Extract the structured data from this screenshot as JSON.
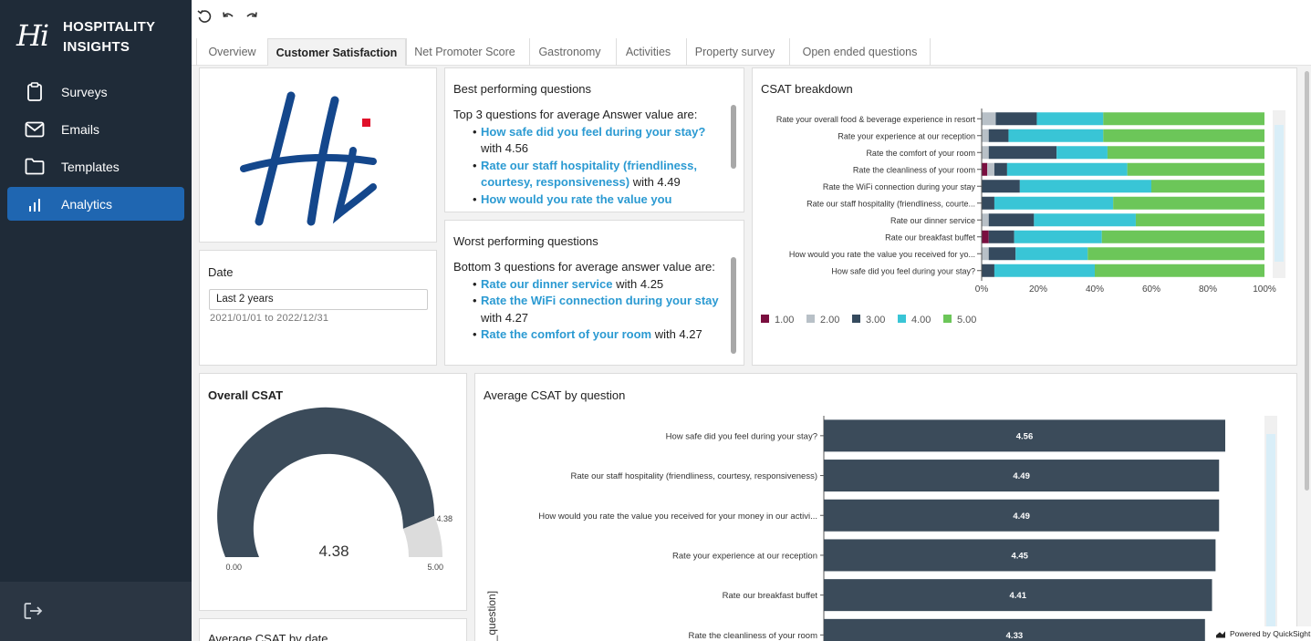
{
  "brand": {
    "mark": "Hi",
    "line1": "HOSPITALITY",
    "line2": "INSIGHTS"
  },
  "sidebar": {
    "items": [
      {
        "label": "Surveys",
        "icon": "clipboard-icon"
      },
      {
        "label": "Emails",
        "icon": "mail-icon"
      },
      {
        "label": "Templates",
        "icon": "folder-icon"
      },
      {
        "label": "Analytics",
        "icon": "bar-chart-icon",
        "active": true
      }
    ]
  },
  "tabs": [
    {
      "label": "Overview"
    },
    {
      "label": "Customer Satisfaction",
      "active": true
    },
    {
      "label": "Net Promoter Score"
    },
    {
      "label": "Gastronomy"
    },
    {
      "label": "Activities"
    },
    {
      "label": "Property survey"
    },
    {
      "label": "Open ended questions"
    }
  ],
  "best": {
    "title": "Best performing questions",
    "intro": "Top 3 questions for average Answer value are:",
    "items": [
      {
        "q": "How safe did you feel during your stay?",
        "tail": "with 4.56"
      },
      {
        "q": "Rate our staff hospitality (friendliness, courtesy, responsiveness)",
        "tail": "with 4.49"
      },
      {
        "q": "How would you rate the value you",
        "tail": ""
      }
    ]
  },
  "worst": {
    "title": "Worst performing questions",
    "intro": "Bottom 3 questions for average answer value are:",
    "items": [
      {
        "q": "Rate our dinner service",
        "tail": "with 4.25"
      },
      {
        "q": "Rate the WiFi connection during your stay",
        "tail": "with 4.27"
      },
      {
        "q": "Rate the comfort of your room",
        "tail": "with 4.27"
      }
    ]
  },
  "date_filter": {
    "title": "Date",
    "value": "Last 2 years",
    "range": "2021/01/01 to 2022/12/31"
  },
  "overall": {
    "title": "Overall CSAT",
    "value": "4.38",
    "min": "0.00",
    "max": "5.00",
    "marker": "4.38"
  },
  "avg_by_date": {
    "title": "Average CSAT by date"
  },
  "colors": {
    "s1": "#7a0e3f",
    "s2": "#b8c0c7",
    "s3": "#354a5e",
    "s4": "#39c5d6",
    "s5": "#6cc659",
    "bar": "#3b4b5a",
    "accent": "#1f66b1"
  },
  "chart_data": [
    {
      "type": "bar",
      "orientation": "horizontal",
      "stacked": "percent",
      "title": "CSAT breakdown",
      "categories": [
        "Rate your overall food & beverage experience in resort",
        "Rate your experience at our reception",
        "Rate the comfort of your room",
        "Rate the cleanliness of your room",
        "Rate the WiFi connection during your stay",
        "Rate our staff hospitality (friendliness, courte...",
        "Rate our dinner service",
        "Rate our breakfast buffet",
        "How would you rate the value you received for yo...",
        "How safe did you feel during your stay?"
      ],
      "series": [
        {
          "name": "1.00",
          "values": [
            0,
            0,
            0,
            2,
            0,
            0,
            0,
            2.5,
            0,
            0
          ]
        },
        {
          "name": "2.00",
          "values": [
            5,
            2.5,
            2.5,
            2.5,
            0,
            0,
            2.5,
            0,
            2.5,
            0
          ]
        },
        {
          "name": "3.00",
          "values": [
            14.5,
            7,
            24,
            4.5,
            13.5,
            4.5,
            16,
            9,
            9.5,
            4.5
          ]
        },
        {
          "name": "4.00",
          "values": [
            23.5,
            33.5,
            18,
            42.5,
            46.5,
            42,
            36,
            31,
            25.5,
            35.5
          ]
        },
        {
          "name": "5.00",
          "values": [
            57,
            57,
            55.5,
            48.5,
            40,
            53.5,
            45.5,
            57.5,
            62.5,
            60
          ]
        }
      ],
      "xlim": [
        0,
        100
      ],
      "xticks": [
        "0%",
        "20%",
        "40%",
        "60%",
        "80%",
        "100%"
      ],
      "legend": "bottom"
    },
    {
      "type": "bar",
      "orientation": "horizontal",
      "title": "Average CSAT by question",
      "ylabel": "d_question]",
      "categories": [
        "How safe did you feel during your stay?",
        "Rate our staff hospitality (friendliness, courtesy, responsiveness)",
        "How would you rate the value you received for your money in our activi...",
        "Rate your experience at our reception",
        "Rate our breakfast buffet",
        "Rate the cleanliness of your room"
      ],
      "values": [
        4.56,
        4.49,
        4.49,
        4.45,
        4.41,
        4.33
      ],
      "xlim": [
        0,
        4.56
      ]
    }
  ],
  "footer": {
    "powered": "Powered by QuickSight"
  }
}
